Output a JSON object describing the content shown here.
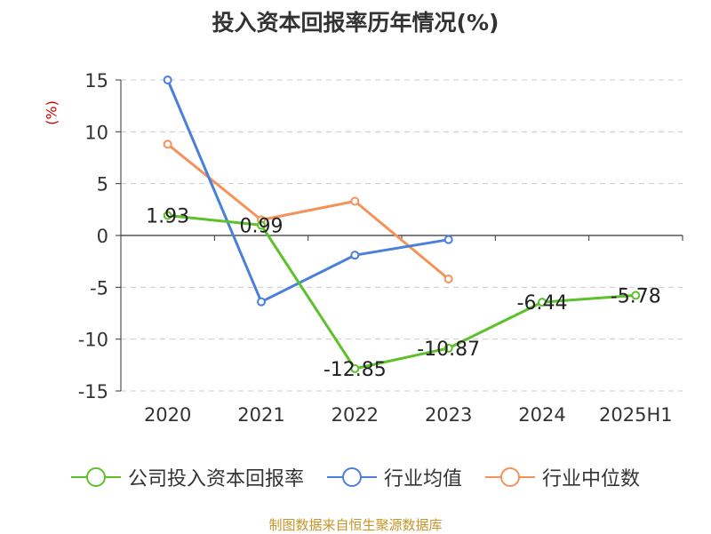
{
  "chart_data": {
    "type": "line",
    "title": "投入资本回报率历年情况(%)",
    "ylabel": "(%)",
    "categories": [
      "2020",
      "2021",
      "2022",
      "2023",
      "2024",
      "2025H1"
    ],
    "ylim": [
      -15,
      15
    ],
    "yticks": [
      15,
      10,
      5,
      0,
      -5,
      -10,
      -15
    ],
    "grid": true,
    "legend_position": "bottom",
    "series": [
      {
        "name": "公司投入资本回报率",
        "color": "#5cc12a",
        "values": [
          1.93,
          0.99,
          -12.85,
          -10.87,
          -6.44,
          -5.78
        ],
        "labels": [
          "1.93",
          "0.99",
          "-12.85",
          "-10.87",
          "-6.44",
          "-5.78"
        ]
      },
      {
        "name": "行业均值",
        "color": "#4a7fdb",
        "values": [
          15.0,
          -6.4,
          -1.9,
          -0.4,
          null,
          null
        ]
      },
      {
        "name": "行业中位数",
        "color": "#f5925a",
        "values": [
          8.8,
          1.5,
          3.3,
          -4.2,
          null,
          null
        ]
      }
    ]
  },
  "source": "制图数据来自恒生聚源数据库"
}
